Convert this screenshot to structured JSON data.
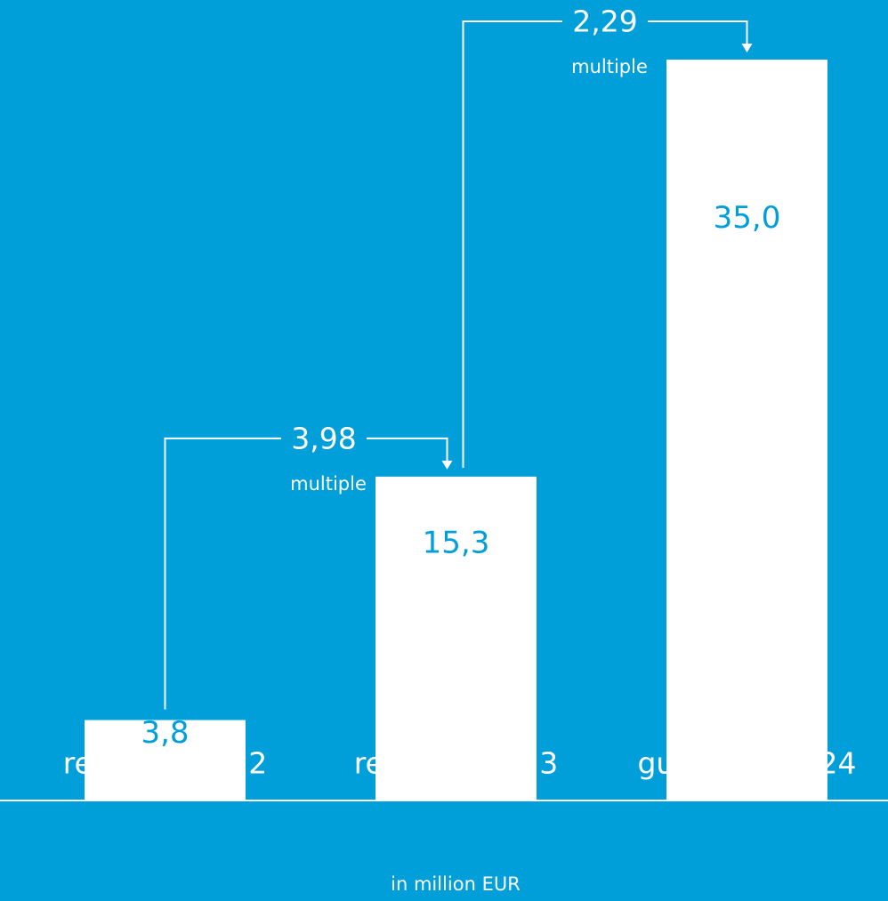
{
  "chart_data": {
    "type": "bar",
    "categories": [
      "revenue 2022",
      "revenue 2023",
      "guidance 2024"
    ],
    "values": [
      3.8,
      15.3,
      35.0
    ],
    "value_labels": [
      "3,8",
      "15,3",
      "35,0"
    ],
    "color": "#ffffff",
    "x_label": "in million EUR",
    "annotations": [
      {
        "text": "3,98",
        "note": "multiple"
      },
      {
        "text": "2,29",
        "note": "multiple"
      }
    ]
  }
}
